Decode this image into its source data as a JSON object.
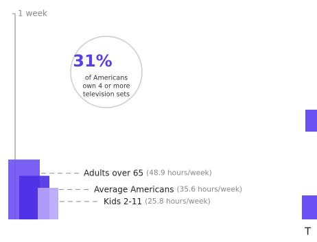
{
  "chart_data": {
    "type": "bar",
    "categories": [
      "Adults over 65",
      "Average Americans",
      "Kids 2-11"
    ],
    "values": [
      48.9,
      35.6,
      25.8
    ],
    "value_labels": [
      "(48.9 hours/week)",
      "(35.6 hours/week)",
      "(25.8 hours/week)"
    ],
    "colors": [
      "#6b50f2",
      "#4a2ee3",
      "#b7a6f9"
    ],
    "ylim": [
      0,
      168
    ],
    "yticks": [
      {
        "value": 168,
        "label": "1 week"
      }
    ],
    "callout": {
      "value": 31,
      "label": "31%",
      "text": [
        "of Americans",
        "own 4 or more",
        "television sets"
      ]
    },
    "annotations": [
      "T"
    ]
  }
}
